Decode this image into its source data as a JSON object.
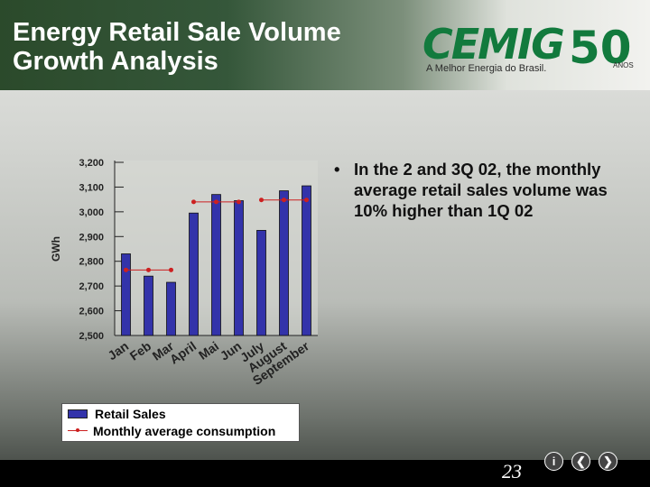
{
  "slide": {
    "title_line1": "Energy Retail Sale Volume",
    "title_line2": "Growth Analysis",
    "page_number": "23"
  },
  "logo": {
    "word": "CEMIG",
    "tagline": "A Melhor Energia do Brasil.",
    "anniversary": "50",
    "anos": "ANOS"
  },
  "bullet": {
    "symbol": "•",
    "text": "In the 2 and 3Q 02, the monthly average retail sales volume was 10% higher than 1Q 02"
  },
  "nav": {
    "info": "i",
    "prev": "❮",
    "next": "❯"
  },
  "colors": {
    "bar": "#3333aa",
    "line": "#cc2020"
  },
  "chart_data": {
    "type": "bar",
    "categories": [
      "Jan",
      "Feb",
      "Mar",
      "April",
      "Mai",
      "Jun",
      "July",
      "August",
      "September"
    ],
    "ylabel": "GWh",
    "ylim": [
      2500,
      3200
    ],
    "yticks": [
      "3,200",
      "3,100",
      "3,000",
      "2,900",
      "2,800",
      "2,700",
      "2,600",
      "2,500"
    ],
    "series": [
      {
        "name": "Retail Sales",
        "kind": "bar",
        "values": [
          2830,
          2740,
          2715,
          2995,
          3070,
          3045,
          2925,
          3085,
          3105
        ]
      },
      {
        "name": "Monthly average consumption",
        "kind": "line",
        "values": [
          2765,
          2765,
          2765,
          3040,
          3040,
          3040,
          3048,
          3048,
          3048
        ]
      }
    ],
    "legend_position": "bottom"
  }
}
